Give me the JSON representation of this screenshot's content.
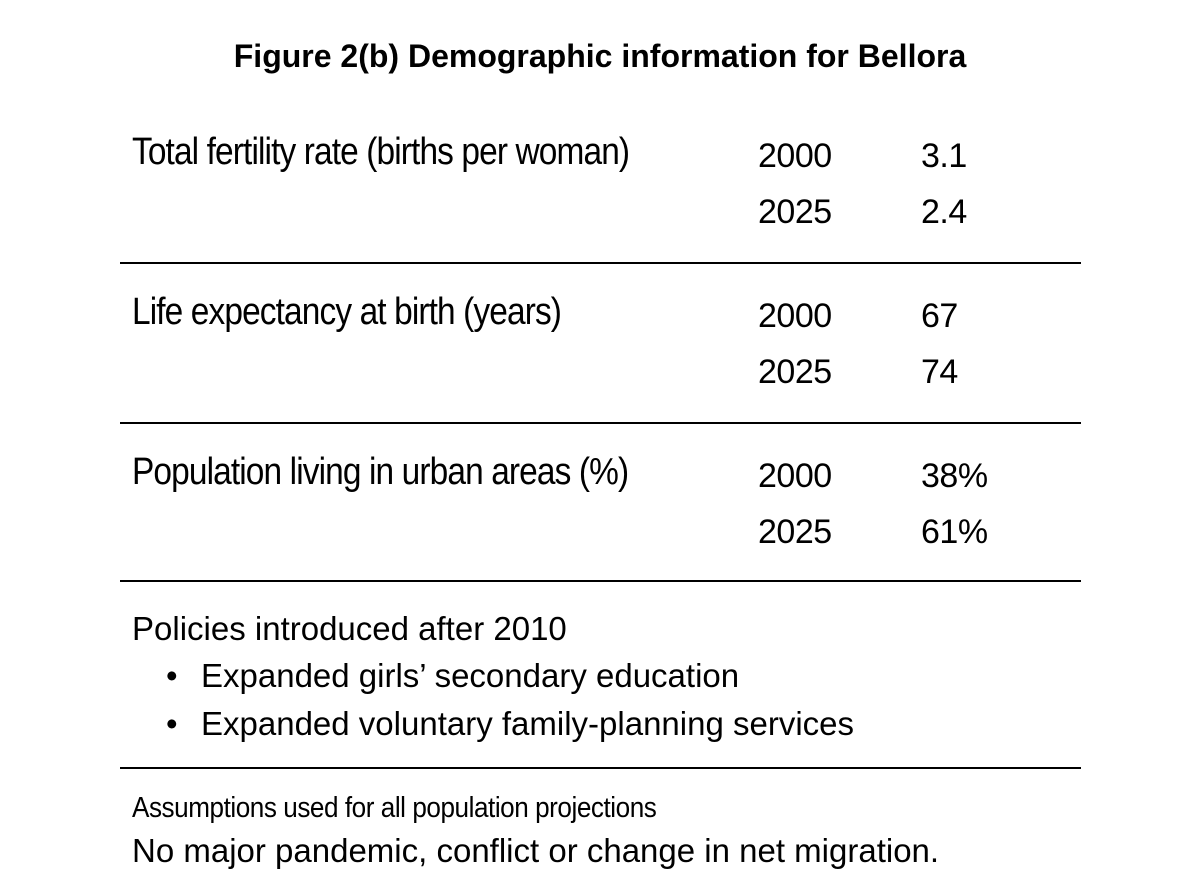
{
  "figure": {
    "title": "Figure 2(b) Demographic information for Bellora"
  },
  "indicators": [
    {
      "label": "Total fertility rate (births per woman)",
      "rows": [
        {
          "year": "2000",
          "value": "3.1"
        },
        {
          "year": "2025",
          "value": "2.4"
        }
      ]
    },
    {
      "label": "Life expectancy at birth (years)",
      "rows": [
        {
          "year": "2000",
          "value": "67"
        },
        {
          "year": "2025",
          "value": "74"
        }
      ]
    },
    {
      "label": "Population living in urban areas (%)",
      "rows": [
        {
          "year": "2000",
          "value": "38%"
        },
        {
          "year": "2025",
          "value": "61%"
        }
      ]
    }
  ],
  "policies": {
    "heading": "Policies introduced after 2010",
    "bullet": "•",
    "items": [
      "Expanded girls’ secondary education",
      "Expanded voluntary family-planning services"
    ]
  },
  "assumptions": {
    "heading": "Assumptions used for all population projections",
    "text": "No major pandemic, conflict or change in net migration."
  }
}
